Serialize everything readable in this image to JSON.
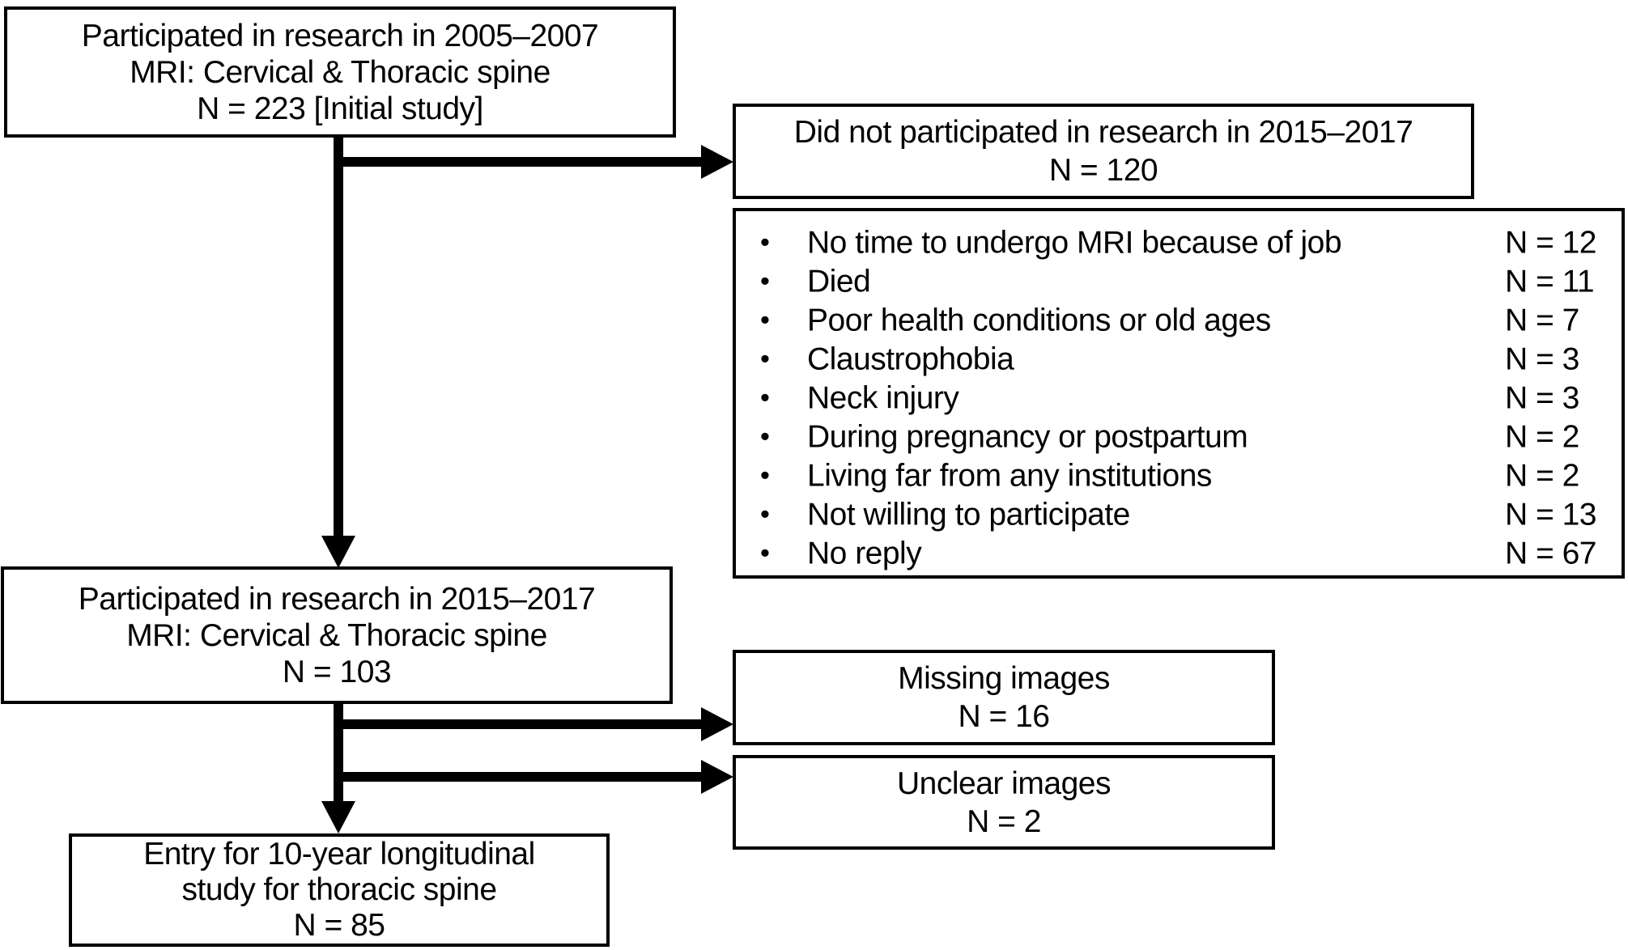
{
  "colors": {
    "ink": "#000000",
    "background": "#ffffff"
  },
  "boxes": {
    "initial": {
      "lines": [
        "Participated in research in 2005–2007",
        "MRI: Cervical & Thoracic spine",
        "N = 223 [Initial study]"
      ]
    },
    "did_not_participate": {
      "lines": [
        "Did not participated in research in 2015–2017",
        "N = 120"
      ]
    },
    "participated_2015": {
      "lines": [
        "Participated in research in 2015–2017",
        "MRI: Cervical & Thoracic spine",
        "N = 103"
      ]
    },
    "missing_images": {
      "lines": [
        "Missing images",
        "N = 16"
      ]
    },
    "unclear_images": {
      "lines": [
        "Unclear images",
        "N = 2"
      ]
    },
    "entry": {
      "lines": [
        "Entry for 10-year longitudinal",
        "study for thoracic spine",
        "N = 85"
      ]
    }
  },
  "reasons": {
    "bullet": "•",
    "items": [
      {
        "label": "No time to undergo MRI because of job",
        "n": "N = 12"
      },
      {
        "label": "Died",
        "n": "N = 11"
      },
      {
        "label": "Poor health conditions or old ages",
        "n": "N = 7"
      },
      {
        "label": "Claustrophobia",
        "n": "N = 3"
      },
      {
        "label": "Neck injury",
        "n": "N = 3"
      },
      {
        "label": "During pregnancy or postpartum",
        "n": "N = 2"
      },
      {
        "label": "Living far from any institutions",
        "n": "N = 2"
      },
      {
        "label": "Not willing to participate",
        "n": "N = 13"
      },
      {
        "label": "No reply",
        "n": "N = 67"
      }
    ]
  }
}
